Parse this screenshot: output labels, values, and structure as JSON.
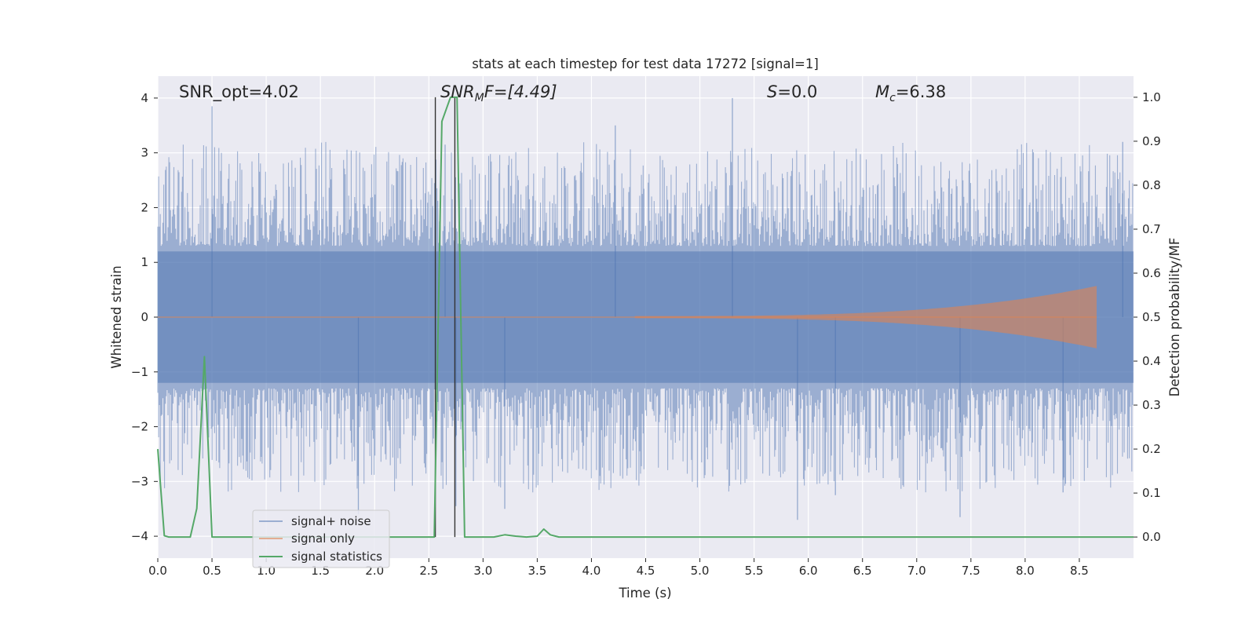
{
  "chart_data": {
    "type": "line",
    "title": "stats at each timestep for test data 17272 [signal=1]",
    "xlabel": "Time (s)",
    "ylabel_left": "Whitened strain",
    "ylabel_right": "Detection probability/MF",
    "xlim": [
      0.0,
      9.0
    ],
    "ylim_left": [
      -4.4,
      4.4
    ],
    "ylim_right": [
      -0.048,
      1.048
    ],
    "x_ticks": [
      "0.0",
      "0.5",
      "1.0",
      "1.5",
      "2.0",
      "2.5",
      "3.0",
      "3.5",
      "4.0",
      "4.5",
      "5.0",
      "5.5",
      "6.0",
      "6.5",
      "7.0",
      "7.5",
      "8.0",
      "8.5"
    ],
    "x_tick_values": [
      0.0,
      0.5,
      1.0,
      1.5,
      2.0,
      2.5,
      3.0,
      3.5,
      4.0,
      4.5,
      5.0,
      5.5,
      6.0,
      6.5,
      7.0,
      7.5,
      8.0,
      8.5
    ],
    "y_left_ticks": [
      "−4",
      "−3",
      "−2",
      "−1",
      "0",
      "1",
      "2",
      "3",
      "4"
    ],
    "y_left_tick_values": [
      -4,
      -3,
      -2,
      -1,
      0,
      1,
      2,
      3,
      4
    ],
    "y_right_ticks": [
      "0.0",
      "0.1",
      "0.2",
      "0.3",
      "0.4",
      "0.5",
      "0.6",
      "0.7",
      "0.8",
      "0.9",
      "1.0"
    ],
    "y_right_tick_values": [
      0.0,
      0.1,
      0.2,
      0.3,
      0.4,
      0.5,
      0.6,
      0.7,
      0.8,
      0.9,
      1.0
    ],
    "grid": true,
    "legend_placement": "lower-left",
    "annotations": {
      "snr_opt": "SNR_opt=4.02",
      "snr_mf_main": "SNR",
      "snr_mf_sub": "M",
      "snr_mf_rest": "F=[4.49]",
      "s_italic": "S",
      "s_rest": "=0.0",
      "mc_main": "M",
      "mc_sub": "c",
      "mc_rest": "=6.38"
    },
    "vertical_markers_x": [
      2.56,
      2.74
    ],
    "series": [
      {
        "name": "signal+ noise",
        "color": "#4c72b0",
        "kind": "noise",
        "band_abs_range": [
          1.2,
          1.7
        ],
        "noise_peaks": [
          {
            "x": 0.5,
            "y": 3.85
          },
          {
            "x": 5.3,
            "y": 4.0
          },
          {
            "x": 4.22,
            "y": 3.5
          },
          {
            "x": 8.9,
            "y": 3.2
          },
          {
            "x": 2.65,
            "y": 3.15
          },
          {
            "x": 1.85,
            "y": -3.6
          },
          {
            "x": 5.9,
            "y": -3.7
          },
          {
            "x": 7.4,
            "y": -3.65
          },
          {
            "x": 3.2,
            "y": -3.5
          },
          {
            "x": 2.75,
            "y": -3.45
          },
          {
            "x": 6.25,
            "y": -3.25
          },
          {
            "x": 8.35,
            "y": -3.2
          }
        ]
      },
      {
        "name": "signal only",
        "color": "#dd8452",
        "kind": "chirp",
        "x_start": 4.4,
        "x_end": 8.66,
        "amp_end": 0.55
      },
      {
        "name": "signal statistics",
        "color": "#55a868",
        "axis": "right",
        "x": [
          0.0,
          0.06,
          0.1,
          0.3,
          0.36,
          0.43,
          0.5,
          0.55,
          2.0,
          2.55,
          2.62,
          2.7,
          2.76,
          2.83,
          2.9,
          3.0,
          3.1,
          3.2,
          3.3,
          3.4,
          3.5,
          3.56,
          3.62,
          3.7,
          4.0,
          5.0,
          6.0,
          7.0,
          8.0,
          9.0
        ],
        "y": [
          0.2,
          0.003,
          0.0,
          0.0,
          0.065,
          0.41,
          0.0,
          0.0,
          0.0,
          0.0,
          0.945,
          1.0,
          1.0,
          0.0,
          0.0,
          0.0,
          0.0,
          0.005,
          0.002,
          0.0,
          0.002,
          0.018,
          0.005,
          0.0,
          0.0,
          0.0,
          0.0,
          0.0,
          0.0,
          0.0
        ]
      }
    ]
  }
}
